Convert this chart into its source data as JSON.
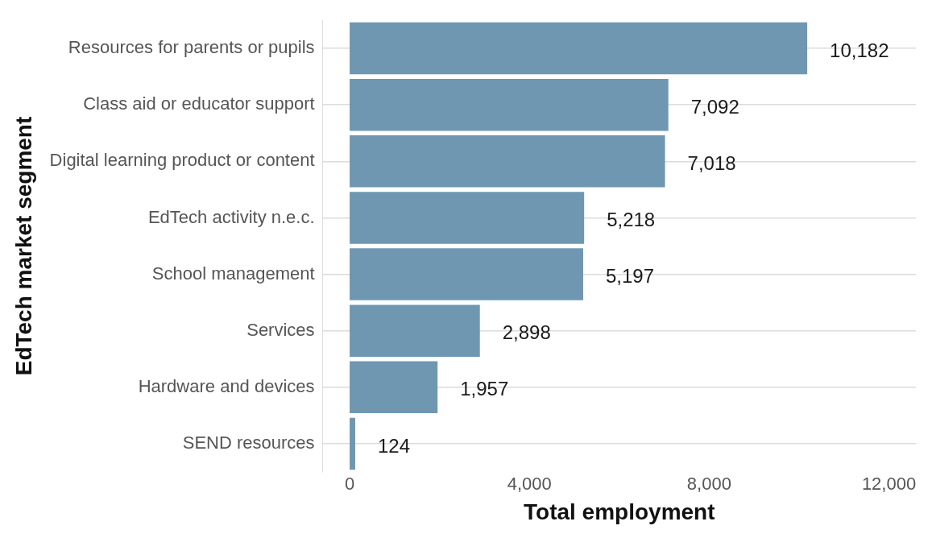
{
  "chart_data": {
    "type": "bar",
    "orientation": "horizontal",
    "xlabel": "Total employment",
    "ylabel": "EdTech market segment",
    "categories": [
      "Resources for parents or pupils",
      "Class aid or educator support",
      "Digital learning product or content",
      "EdTech activity n.e.c.",
      "School management",
      "Services",
      "Hardware and devices",
      "SEND resources"
    ],
    "values": [
      10182,
      7092,
      7018,
      5218,
      5197,
      2898,
      1957,
      124
    ],
    "value_labels": [
      "10,182",
      "7,092",
      "7,018",
      "5,218",
      "5,197",
      "2,898",
      "1,957",
      "124"
    ],
    "color": "#7097b1",
    "xlim": [
      -600,
      12600
    ],
    "xticks": [
      {
        "value": 0,
        "label": "0"
      },
      {
        "value": 4000,
        "label": "4,000"
      },
      {
        "value": 8000,
        "label": "8,000"
      },
      {
        "value": 12000,
        "label": "12,000"
      }
    ],
    "grid": "y",
    "legend": false
  }
}
